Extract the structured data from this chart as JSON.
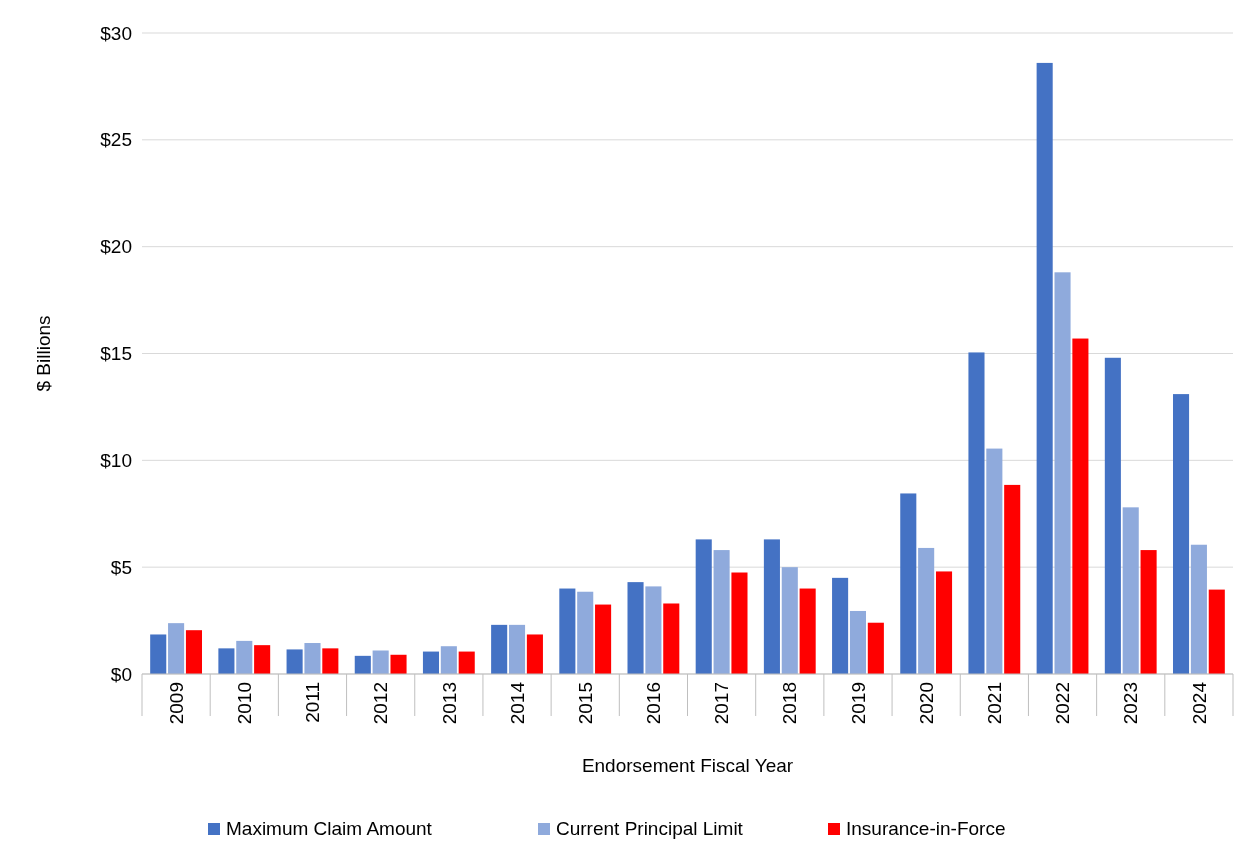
{
  "chart_data": {
    "type": "bar",
    "xlabel": "Endorsement Fiscal Year",
    "ylabel": "$ Billions",
    "categories": [
      "2009",
      "2010",
      "2011",
      "2012",
      "2013",
      "2014",
      "2015",
      "2016",
      "2017",
      "2018",
      "2019",
      "2020",
      "2021",
      "2022",
      "2023",
      "2024"
    ],
    "series": [
      {
        "name": "Maximum Claim Amount",
        "color": "#4472c4",
        "values": [
          1.85,
          1.2,
          1.15,
          0.85,
          1.05,
          2.3,
          4.0,
          4.3,
          6.3,
          6.3,
          4.5,
          8.45,
          15.05,
          28.6,
          14.8,
          13.1
        ]
      },
      {
        "name": "Current Principal Limit",
        "color": "#8faadc",
        "values": [
          2.38,
          1.55,
          1.45,
          1.1,
          1.3,
          2.3,
          3.85,
          4.1,
          5.8,
          5.0,
          2.95,
          5.9,
          10.55,
          18.8,
          7.8,
          6.05
        ]
      },
      {
        "name": "Insurance-in-Force",
        "color": "#ff0000",
        "values": [
          2.05,
          1.35,
          1.2,
          0.9,
          1.05,
          1.85,
          3.25,
          3.3,
          4.75,
          4.0,
          2.4,
          4.8,
          8.85,
          15.7,
          5.8,
          3.95
        ]
      }
    ],
    "ylim": [
      0,
      30
    ],
    "yticks": [
      {
        "value": 0,
        "label": "$0"
      },
      {
        "value": 5,
        "label": "$5"
      },
      {
        "value": 10,
        "label": "$10"
      },
      {
        "value": 15,
        "label": "$15"
      },
      {
        "value": 20,
        "label": "$20"
      },
      {
        "value": 25,
        "label": "$25"
      },
      {
        "value": 30,
        "label": "$30"
      }
    ],
    "grid": "y",
    "legend": "bottom"
  }
}
